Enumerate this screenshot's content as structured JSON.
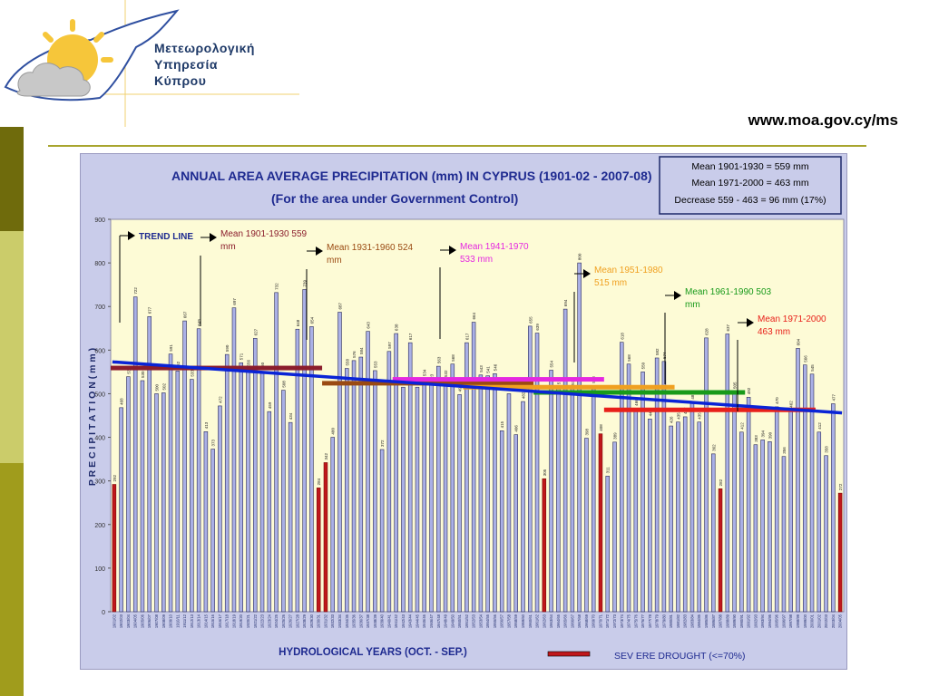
{
  "header": {
    "org_line1": "Μετεωρολογική",
    "org_line2": "Υπηρεσία",
    "org_line3": "Κύπρου",
    "url": "www.moa.gov.cy/ms"
  },
  "colors": {
    "bar": "#aab0e6",
    "drought": "#c0171b",
    "trend": "#0a24d6",
    "plot_bg": "#fdfbd6",
    "frame_bg": "#c9ccea",
    "accent_olive": "#9a9a2a"
  },
  "legend_box": {
    "line1": "Mean 1901-1930 = 559 mm",
    "line2": "Mean 1971-2000 = 463 mm",
    "line3": "Decrease 559 - 463 = 96 mm (17%)"
  },
  "bottom_legend": {
    "label": "SEV ERE DROUGHT (<=70%)"
  },
  "chart_data": {
    "type": "bar",
    "title": "ANNUAL AREA AVERAGE PRECIPITATION (mm) IN CYPRUS (1901-02 - 2007-08)",
    "subtitle": "(For the area under Government Control)",
    "xlabel": "HYDROLOGICAL YEARS (OCT. - SEP.)",
    "ylabel": "P R E C I P I T A T I O N ( m m )",
    "ylim": [
      0,
      900
    ],
    "yticks": [
      0,
      100,
      200,
      300,
      400,
      500,
      600,
      700,
      800,
      900
    ],
    "values": [
      292,
      468,
      539,
      722,
      530,
      677,
      500,
      502,
      591,
      552,
      667,
      533,
      649,
      413,
      373,
      472,
      590,
      697,
      571,
      556,
      627,
      550,
      459,
      732,
      508,
      434,
      648,
      739,
      654,
      284,
      342,
      400,
      687,
      558,
      576,
      584,
      643,
      553,
      372,
      597,
      638,
      515,
      617,
      515,
      534,
      523,
      563,
      532,
      568,
      498,
      617,
      664,
      543,
      541,
      546,
      415,
      500,
      406,
      482,
      655,
      639,
      305,
      554,
      515,
      694,
      514,
      800,
      398,
      518,
      408,
      311,
      389,
      618,
      568,
      466,
      550,
      442,
      582,
      574,
      426,
      435,
      447,
      481,
      435,
      628,
      362,
      282,
      637,
      505,
      412,
      492,
      383,
      394,
      390,
      470,
      356,
      462,
      604,
      566,
      545,
      412,
      358,
      477,
      272
    ],
    "drought": [
      0,
      29,
      30,
      61,
      69,
      86,
      103
    ],
    "trend": {
      "start": 573,
      "end": 456
    },
    "means": [
      {
        "label_line1": "Mean 1901-1930  559",
        "label_line2": "mm",
        "value": 559,
        "from": 0,
        "to": 29,
        "color": "#8b1d2c"
      },
      {
        "label_line1": "Mean 1931-1960  524",
        "label_line2": "mm",
        "value": 524,
        "from": 30,
        "to": 59,
        "color": "#9a4a12"
      },
      {
        "label_line1": "Mean 1941-1970",
        "label_line2": "533 mm",
        "value": 533,
        "from": 40,
        "to": 69,
        "color": "#e528e0"
      },
      {
        "label_line1": "Mean 1951-1980",
        "label_line2": "515 mm",
        "value": 515,
        "from": 50,
        "to": 79,
        "color": "#f0a020"
      },
      {
        "label_line1": "Mean 1961-1990  503",
        "label_line2": "mm",
        "value": 503,
        "from": 60,
        "to": 89,
        "color": "#189a1a"
      },
      {
        "label_line1": "Mean 1971-2000",
        "label_line2": "463 mm",
        "value": 463,
        "from": 70,
        "to": 99,
        "color": "#e8201a"
      }
    ],
    "trend_label": "TREND LINE"
  }
}
